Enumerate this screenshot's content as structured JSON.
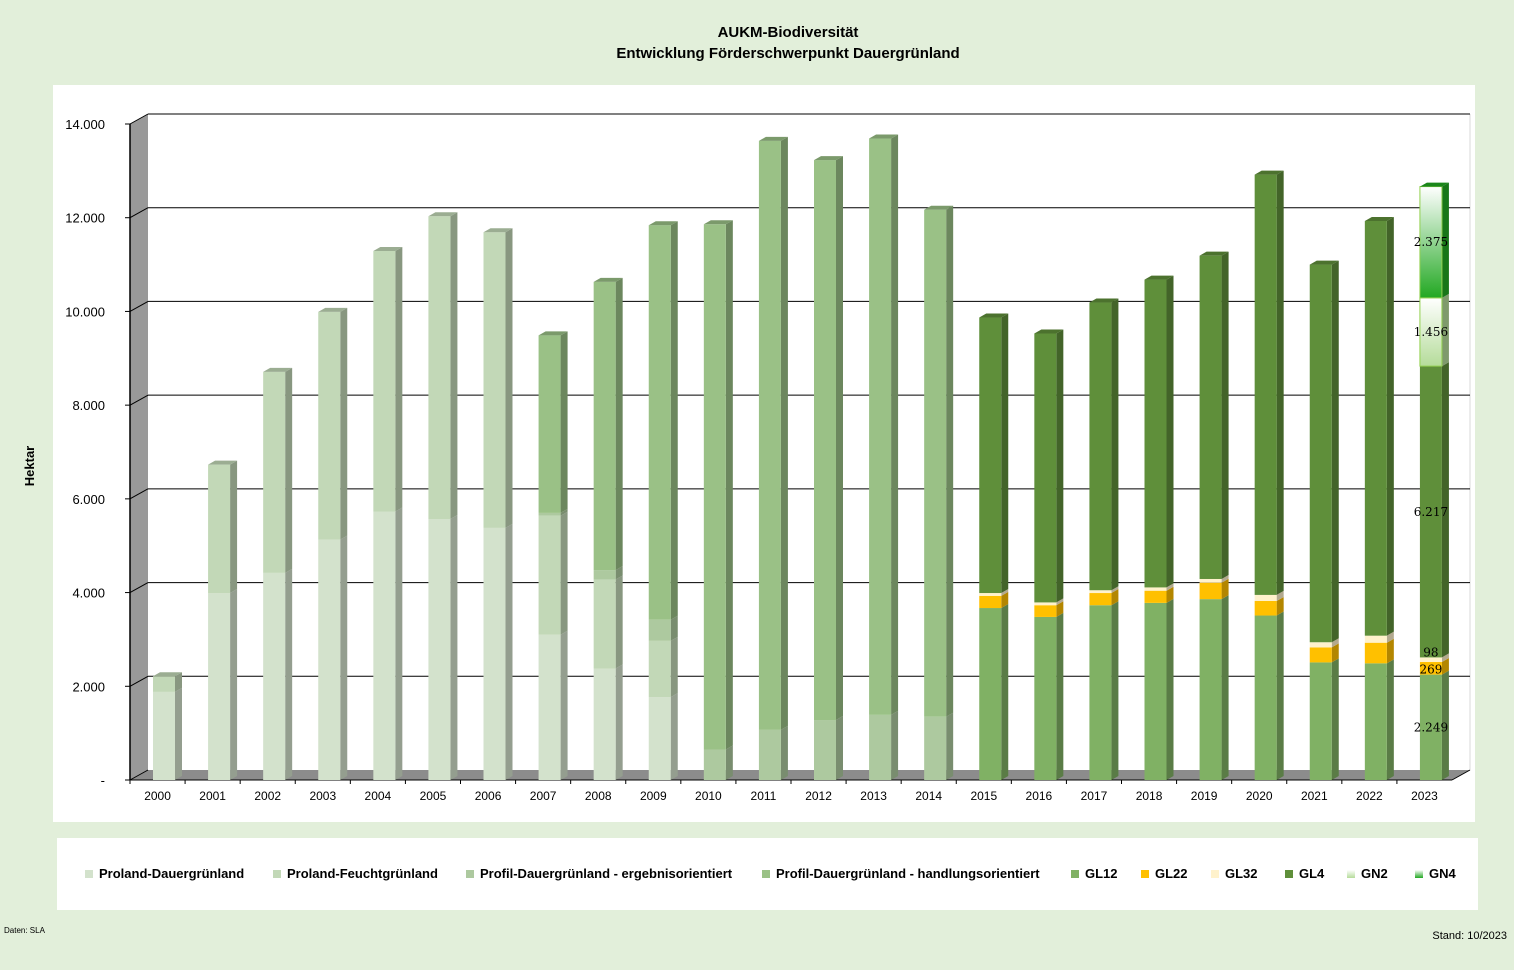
{
  "chart_data": {
    "type": "bar",
    "stacked": true,
    "three_d": true,
    "title": [
      "AUKM-Biodiversität",
      "Entwicklung Förderschwerpunkt  Dauergrünland"
    ],
    "xlabel": "",
    "ylabel": "Hektar",
    "ylim": [
      0,
      14000
    ],
    "yticks": [
      0,
      2000,
      4000,
      6000,
      8000,
      10000,
      12000,
      14000
    ],
    "ytick_labels": [
      "-",
      "2.000",
      "4.000",
      "6.000",
      "8.000",
      "10.000",
      "12.000",
      "14.000"
    ],
    "grid": true,
    "legend_position": "bottom",
    "categories": [
      "2000",
      "2001",
      "2002",
      "2003",
      "2004",
      "2005",
      "2006",
      "2007",
      "2008",
      "2009",
      "2010",
      "2011",
      "2012",
      "2013",
      "2014",
      "2015",
      "2016",
      "2017",
      "2018",
      "2019",
      "2020",
      "2021",
      "2022",
      "2023"
    ],
    "series": [
      {
        "name": "Proland-Dauergrünland",
        "color": "#d3e2cc",
        "values": [
          1880,
          3990,
          4420,
          5130,
          5730,
          5570,
          5380,
          3100,
          2380,
          1770,
          0,
          0,
          0,
          0,
          0,
          0,
          0,
          0,
          0,
          0,
          0,
          0,
          0,
          0
        ]
      },
      {
        "name": "Proland-Feuchtgrünland",
        "color": "#c2d8b7",
        "values": [
          335,
          2740,
          4290,
          4860,
          5560,
          6460,
          6310,
          2540,
          1900,
          1200,
          0,
          0,
          0,
          0,
          0,
          0,
          0,
          0,
          0,
          0,
          0,
          0,
          0,
          0
        ]
      },
      {
        "name": "Profil-Dauergrünland - ergebnisorientiert",
        "color": "#adc99f",
        "values": [
          0,
          0,
          0,
          0,
          0,
          0,
          0,
          60,
          200,
          450,
          650,
          1070,
          1280,
          1390,
          1350,
          0,
          0,
          0,
          0,
          0,
          0,
          0,
          0,
          0
        ]
      },
      {
        "name": "Profil-Dauergrünland - handlungsorientiert",
        "color": "#9ac186",
        "values": [
          0,
          0,
          0,
          0,
          0,
          0,
          0,
          3790,
          6150,
          8420,
          11210,
          12570,
          11950,
          12300,
          10820,
          0,
          0,
          0,
          0,
          0,
          0,
          0,
          0,
          0
        ]
      },
      {
        "name": "GL12",
        "color": "#80b164",
        "values": [
          0,
          0,
          0,
          0,
          0,
          0,
          0,
          0,
          0,
          0,
          0,
          0,
          0,
          0,
          0,
          3670,
          3480,
          3730,
          3780,
          3860,
          3510,
          2510,
          2490,
          2249
        ]
      },
      {
        "name": "GL22",
        "color": "#ffc000",
        "values": [
          0,
          0,
          0,
          0,
          0,
          0,
          0,
          0,
          0,
          0,
          0,
          0,
          0,
          0,
          0,
          260,
          250,
          260,
          260,
          350,
          310,
          320,
          440,
          269
        ]
      },
      {
        "name": "GL32",
        "color": "#fff2cc",
        "values": [
          0,
          0,
          0,
          0,
          0,
          0,
          0,
          0,
          0,
          0,
          0,
          0,
          0,
          0,
          0,
          60,
          60,
          60,
          70,
          80,
          130,
          110,
          150,
          98
        ]
      },
      {
        "name": "GL4",
        "color": "#5f8f3a",
        "values": [
          0,
          0,
          0,
          0,
          0,
          0,
          0,
          0,
          0,
          0,
          0,
          0,
          0,
          0,
          0,
          5880,
          5740,
          6140,
          6570,
          6900,
          8970,
          8060,
          8850,
          6217
        ]
      },
      {
        "name": "GN2",
        "color": "#b5dc9a",
        "gradient": true,
        "values": [
          0,
          0,
          0,
          0,
          0,
          0,
          0,
          0,
          0,
          0,
          0,
          0,
          0,
          0,
          0,
          0,
          0,
          0,
          0,
          0,
          0,
          0,
          0,
          1456
        ]
      },
      {
        "name": "GN4",
        "color": "#22a822",
        "gradient": true,
        "values": [
          0,
          0,
          0,
          0,
          0,
          0,
          0,
          0,
          0,
          0,
          0,
          0,
          0,
          0,
          0,
          0,
          0,
          0,
          0,
          0,
          0,
          0,
          0,
          2375
        ]
      }
    ],
    "data_labels": {
      "category": "2023",
      "labels": [
        {
          "series": "GL12",
          "text": "2.249"
        },
        {
          "series": "GL22",
          "text": "269"
        },
        {
          "series": "GL32",
          "text": "98"
        },
        {
          "series": "GL4",
          "text": "6.217"
        },
        {
          "series": "GN2",
          "text": "1.456"
        },
        {
          "series": "GN4",
          "text": "2.375"
        }
      ]
    }
  },
  "footer": {
    "source": "Daten: SLA",
    "stand": "Stand: 10/2023"
  }
}
